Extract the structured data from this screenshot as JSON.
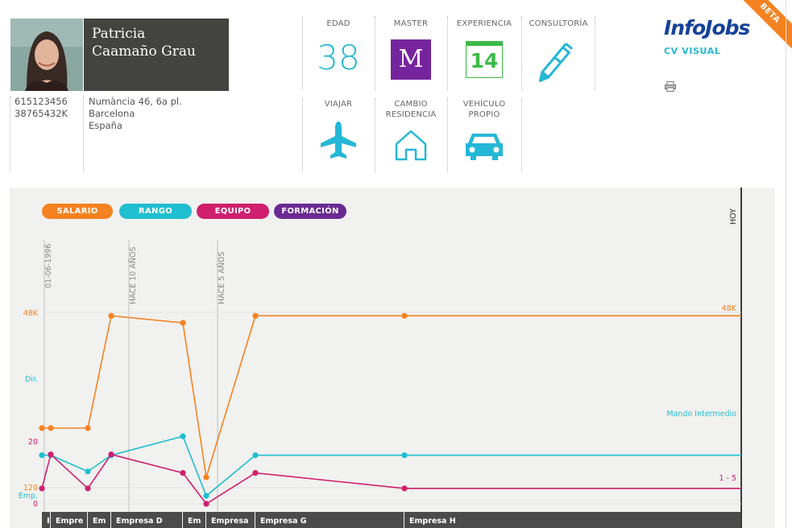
{
  "profile": {
    "first_name": "Patricia",
    "last_name": "Caamaño Grau",
    "phone": "615123456",
    "id_number": "38765432K",
    "address_line1": "Numància 46, 6a pl.",
    "address_city": "Barcelona",
    "address_country": "España"
  },
  "tiles": {
    "edad": {
      "label": "EDAD",
      "value": "38"
    },
    "master": {
      "label": "MASTER",
      "value": "M"
    },
    "experiencia": {
      "label": "EXPERIENCIA",
      "value": "14"
    },
    "consultoria": {
      "label": "CONSULTORÍA",
      "icon": "pen-icon"
    },
    "viajar": {
      "label": "VIAJAR",
      "icon": "plane-icon"
    },
    "cambio": {
      "label_line1": "CAMBIO",
      "label_line2": "RESIDENCIA",
      "icon": "house-icon"
    },
    "vehiculo": {
      "label_line1": "VEHÍCULO",
      "label_line2": "PROPIO",
      "icon": "car-icon"
    }
  },
  "brand": {
    "logo": "InfoJobs",
    "subtitle": "CV VISUAL",
    "ribbon": "BETA"
  },
  "colors": {
    "salario": "#f58220",
    "rango": "#1fbfcf",
    "equipo": "#cf1f6e",
    "formacion": "#6a2a92"
  },
  "legend": {
    "salario": "SALARIO",
    "rango": "RANGO",
    "equipo": "EQUIPO",
    "formacion": "FORMACIÓN"
  },
  "chart_data": {
    "type": "line",
    "markers": [
      "01-06-1996",
      "HACE 10 AÑOS",
      "HACE 5 AÑOS",
      "HOY"
    ],
    "y_labels": {
      "salario_top": "48K",
      "salario_bottom": "120",
      "rango_top": "Dir.",
      "rango_bottom": "Emp.",
      "equipo_top": "20",
      "equipo_bottom": "0"
    },
    "end_labels": {
      "salario": "48K",
      "rango": "Mando Intermedio",
      "equipo": "1 - 5"
    },
    "companies": [
      "E",
      "Empre",
      "Em",
      "Empresa D",
      "Em",
      "Empresa",
      "Empresa G",
      "Empresa H"
    ],
    "series": [
      {
        "name": "SALARIO",
        "key": "salario",
        "values": [
          0.34,
          0.34,
          0.34,
          0.98,
          0.94,
          0.06,
          0.98,
          0.98,
          0.98
        ]
      },
      {
        "name": "RANGO",
        "key": "rango",
        "values": [
          0.3,
          0.3,
          0.18,
          0.3,
          0.44,
          0.0,
          0.3,
          0.3,
          0.3
        ]
      },
      {
        "name": "EQUIPO",
        "key": "equipo",
        "values": [
          0.15,
          0.48,
          0.15,
          0.48,
          0.3,
          0.0,
          0.3,
          0.15,
          0.15
        ]
      }
    ]
  }
}
